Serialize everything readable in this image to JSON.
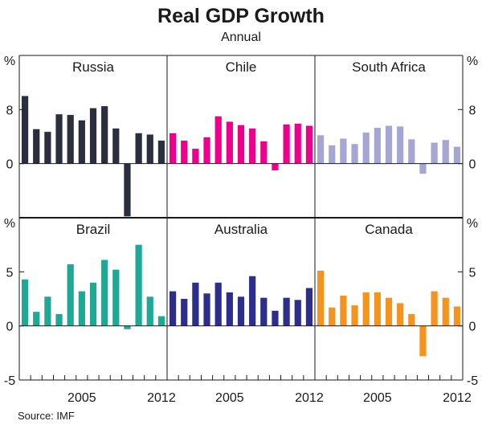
{
  "title": "Real GDP Growth",
  "subtitle": "Annual",
  "source": "Source: IMF",
  "chart_data": {
    "type": "bar",
    "x": [
      2000,
      2001,
      2002,
      2003,
      2004,
      2005,
      2006,
      2007,
      2008,
      2009,
      2010,
      2011,
      2012
    ],
    "x_tick_labels": [
      "2005",
      "2012"
    ],
    "y_unit_label": "%",
    "rows": [
      {
        "ylim": [
          -8,
          16
        ],
        "yticks": [
          "8",
          "0"
        ],
        "panels": [
          {
            "name": "Russia",
            "color": "#2b2e3c",
            "values": [
              10.0,
              5.1,
              4.7,
              7.3,
              7.2,
              6.4,
              8.2,
              8.5,
              5.2,
              -7.8,
              4.5,
              4.3,
              3.4
            ]
          },
          {
            "name": "Chile",
            "color": "#ec008c",
            "values": [
              4.5,
              3.4,
              2.2,
              3.9,
              7.0,
              6.2,
              5.7,
              5.2,
              3.3,
              -1.0,
              5.8,
              5.9,
              5.6
            ]
          },
          {
            "name": "South Africa",
            "color": "#a6a6d2",
            "values": [
              4.2,
              2.7,
              3.7,
              2.9,
              4.6,
              5.3,
              5.6,
              5.5,
              3.6,
              -1.5,
              3.1,
              3.5,
              2.5
            ]
          }
        ]
      },
      {
        "ylim": [
          -5,
          10
        ],
        "yticks": [
          "5",
          "0",
          "-5"
        ],
        "panels": [
          {
            "name": "Brazil",
            "color": "#1fa896",
            "values": [
              4.3,
              1.3,
              2.7,
              1.1,
              5.7,
              3.2,
              4.0,
              6.1,
              5.2,
              -0.3,
              7.5,
              2.7,
              0.9
            ]
          },
          {
            "name": "Australia",
            "color": "#2d2e8c",
            "values": [
              3.2,
              2.5,
              4.0,
              3.0,
              4.0,
              3.1,
              2.7,
              4.6,
              2.6,
              1.4,
              2.6,
              2.4,
              3.5
            ]
          },
          {
            "name": "Canada",
            "color": "#f4931e",
            "values": [
              5.1,
              1.7,
              2.8,
              1.9,
              3.1,
              3.1,
              2.6,
              2.1,
              1.1,
              -2.8,
              3.2,
              2.6,
              1.8
            ]
          }
        ]
      }
    ]
  }
}
